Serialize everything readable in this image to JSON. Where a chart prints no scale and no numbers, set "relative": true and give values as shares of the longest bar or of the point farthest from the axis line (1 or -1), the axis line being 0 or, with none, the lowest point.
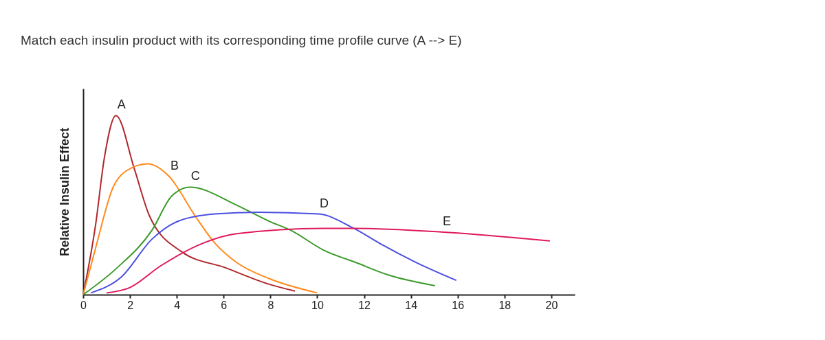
{
  "chart_data": {
    "type": "line",
    "title": "Match each insulin product with its corresponding time profile curve (A --> E)",
    "ylabel": "Relative Insulin Effect",
    "relative": true,
    "xlim": [
      0,
      21
    ],
    "xticks": [
      0,
      2,
      4,
      6,
      8,
      10,
      12,
      14,
      16,
      18,
      20
    ],
    "grid": false,
    "marker": "none",
    "series": [
      {
        "name": "A",
        "color": "#b0282e",
        "x": [
          0,
          0.53,
          0.9,
          1.4,
          2.19,
          2.83,
          4.2,
          6.08,
          7.9,
          9.05
        ],
        "values": [
          0,
          0.39,
          0.76,
          1,
          0.7,
          0.44,
          0.24,
          0.15,
          0.06,
          0.02
        ]
      },
      {
        "name": "B",
        "color": "#ff8a1e",
        "x": [
          0,
          0.53,
          1.28,
          1.83,
          2.75,
          3.67,
          4.78,
          5.61,
          6.55,
          7.94,
          10
        ],
        "values": [
          0,
          0.26,
          0.6,
          0.69,
          0.73,
          0.66,
          0.44,
          0.29,
          0.18,
          0.09,
          0.01
        ]
      },
      {
        "name": "C",
        "color": "#3c9a2a",
        "x": [
          0,
          1.45,
          2.94,
          3.78,
          4.56,
          6.55,
          7.94,
          8.86,
          10.25,
          11.64,
          13.03,
          15.03
        ],
        "values": [
          0,
          0.15,
          0.36,
          0.55,
          0.6,
          0.5,
          0.41,
          0.36,
          0.25,
          0.18,
          0.11,
          0.05
        ]
      },
      {
        "name": "D",
        "color": "#4a4fe0",
        "x": [
          0.33,
          1.64,
          2.94,
          4.06,
          5.61,
          7.47,
          10.06,
          11.56,
          12.75,
          14.22,
          15.94
        ],
        "values": [
          0.01,
          0.1,
          0.31,
          0.41,
          0.45,
          0.46,
          0.45,
          0.37,
          0.28,
          0.18,
          0.08
        ]
      },
      {
        "name": "E",
        "color": "#e0195e",
        "x": [
          1.0,
          2.0,
          3.3,
          5.17,
          6.55,
          10.25,
          11.56,
          15.3,
          19.94
        ],
        "values": [
          0.01,
          0.04,
          0.16,
          0.29,
          0.34,
          0.37,
          0.37,
          0.35,
          0.3
        ]
      }
    ]
  }
}
